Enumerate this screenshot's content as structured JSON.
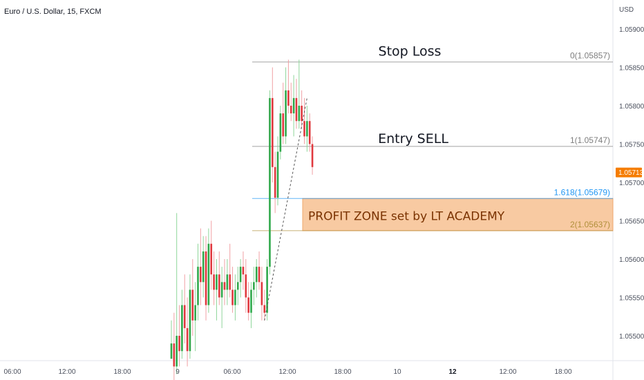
{
  "chart_title": "Euro / U.S. Dollar, 15, FXCM",
  "currency_label": "USD",
  "chart_data": {
    "type": "candlestick",
    "title": "Euro / U.S. Dollar, 15, FXCM",
    "ylim": [
      1.05465,
      1.05945
    ],
    "y_ticks": [
      "1.05900",
      "1.05850",
      "1.05800",
      "1.05750",
      "1.05700",
      "1.05650",
      "1.05600",
      "1.05550",
      "1.05500"
    ],
    "x_ticks": [
      {
        "label": "06:00",
        "slot": 0,
        "bold": false
      },
      {
        "label": "12:00",
        "slot": 1,
        "bold": false
      },
      {
        "label": "18:00",
        "slot": 2,
        "bold": false
      },
      {
        "label": "9",
        "slot": 3,
        "bold": false
      },
      {
        "label": "06:00",
        "slot": 4,
        "bold": false
      },
      {
        "label": "12:00",
        "slot": 5,
        "bold": false
      },
      {
        "label": "18:00",
        "slot": 6,
        "bold": false
      },
      {
        "label": "10",
        "slot": 7,
        "bold": false
      },
      {
        "label": "12",
        "slot": 8,
        "bold": true
      },
      {
        "label": "12:00",
        "slot": 9,
        "bold": false
      },
      {
        "label": "18:00",
        "slot": 10,
        "bold": false
      }
    ],
    "current_price": "1.05713",
    "fib_levels": [
      {
        "label": "0(1.05857)",
        "value": 1.05857,
        "color": "#7d7d7d"
      },
      {
        "label": "1(1.05747)",
        "value": 1.05747,
        "color": "#7d7d7d"
      },
      {
        "label": "1.618(1.05679)",
        "value": 1.05679,
        "color": "#2196f3"
      },
      {
        "label": "2(1.05637)",
        "value": 1.05637,
        "color": "#b08f3a"
      }
    ],
    "annotations": {
      "stop_loss": "Stop Loss",
      "entry": "Entry SELL",
      "profit_zone": "PROFIT ZONE set by LT ACADEMY"
    },
    "candles": [
      [
        1.0547,
        1.0552,
        1.0547,
        1.0549
      ],
      [
        1.0549,
        1.0553,
        1.0544,
        1.0546
      ],
      [
        1.0546,
        1.0566,
        1.0545,
        1.055
      ],
      [
        1.055,
        1.0554,
        1.0546,
        1.0548
      ],
      [
        1.0548,
        1.0556,
        1.0547,
        1.0554
      ],
      [
        1.0554,
        1.0558,
        1.0549,
        1.0551
      ],
      [
        1.0551,
        1.0555,
        1.0546,
        1.0548
      ],
      [
        1.0548,
        1.0558,
        1.0547,
        1.0556
      ],
      [
        1.0556,
        1.056,
        1.055,
        1.0552
      ],
      [
        1.0552,
        1.0557,
        1.0548,
        1.0554
      ],
      [
        1.0554,
        1.0562,
        1.0552,
        1.0559
      ],
      [
        1.0559,
        1.0564,
        1.0554,
        1.0557
      ],
      [
        1.0557,
        1.0563,
        1.0555,
        1.0561
      ],
      [
        1.0561,
        1.0563,
        1.0552,
        1.0554
      ],
      [
        1.0554,
        1.0564,
        1.0553,
        1.0562
      ],
      [
        1.0562,
        1.0565,
        1.0556,
        1.0558
      ],
      [
        1.0558,
        1.0561,
        1.0554,
        1.0556
      ],
      [
        1.0556,
        1.056,
        1.0552,
        1.0558
      ],
      [
        1.0558,
        1.0561,
        1.0554,
        1.0555
      ],
      [
        1.0555,
        1.0559,
        1.0551,
        1.0557
      ],
      [
        1.0557,
        1.056,
        1.0554,
        1.0556
      ],
      [
        1.0556,
        1.056,
        1.0554,
        1.0558
      ],
      [
        1.0558,
        1.0562,
        1.0555,
        1.0556
      ],
      [
        1.0556,
        1.0559,
        1.0553,
        1.0554
      ],
      [
        1.0554,
        1.0558,
        1.0552,
        1.0556
      ],
      [
        1.0556,
        1.0559,
        1.0554,
        1.0557
      ],
      [
        1.0557,
        1.056,
        1.0555,
        1.0559
      ],
      [
        1.0559,
        1.0561,
        1.0556,
        1.0558
      ],
      [
        1.0558,
        1.056,
        1.0553,
        1.0555
      ],
      [
        1.0555,
        1.0557,
        1.0552,
        1.0553
      ],
      [
        1.0553,
        1.0557,
        1.0551,
        1.0556
      ],
      [
        1.0556,
        1.0559,
        1.0554,
        1.0557
      ],
      [
        1.0557,
        1.056,
        1.0555,
        1.0559
      ],
      [
        1.0559,
        1.0561,
        1.0556,
        1.0557
      ],
      [
        1.0557,
        1.0559,
        1.0552,
        1.0554
      ],
      [
        1.0554,
        1.0556,
        1.0552,
        1.0553
      ],
      [
        1.0553,
        1.056,
        1.0552,
        1.0559
      ],
      [
        1.0559,
        1.0582,
        1.0558,
        1.0581
      ],
      [
        1.0581,
        1.0585,
        1.057,
        1.0572
      ],
      [
        1.0572,
        1.0574,
        1.0566,
        1.0568
      ],
      [
        1.0568,
        1.0576,
        1.0567,
        1.0574
      ],
      [
        1.0574,
        1.058,
        1.0573,
        1.0579
      ],
      [
        1.0579,
        1.0583,
        1.0575,
        1.0576
      ],
      [
        1.0576,
        1.0585,
        1.0575,
        1.0582
      ],
      [
        1.0582,
        1.0586,
        1.0579,
        1.058
      ],
      [
        1.058,
        1.0583,
        1.0578,
        1.0579
      ],
      [
        1.0579,
        1.0584,
        1.0576,
        1.0581
      ],
      [
        1.0581,
        1.05835,
        1.0577,
        1.0578
      ],
      [
        1.0578,
        1.0586,
        1.0577,
        1.058
      ],
      [
        1.058,
        1.0582,
        1.0577,
        1.0578
      ],
      [
        1.0578,
        1.0581,
        1.0575,
        1.0576
      ],
      [
        1.0576,
        1.058,
        1.0574,
        1.0578
      ],
      [
        1.0578,
        1.0579,
        1.0574,
        1.0575
      ],
      [
        1.0575,
        1.0576,
        1.0571,
        1.0572
      ]
    ]
  }
}
